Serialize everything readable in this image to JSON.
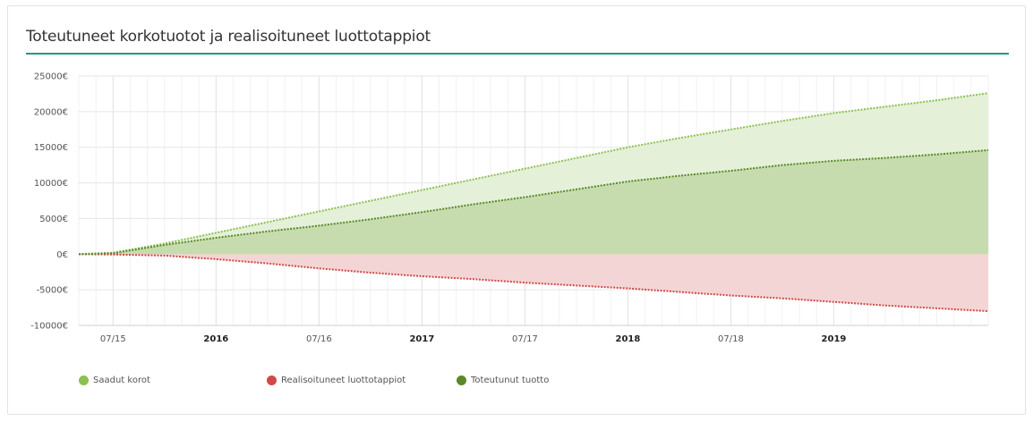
{
  "title": "Toteutuneet korkotuotot ja realisoituneet luottotappiot",
  "chart_data": {
    "type": "area",
    "y_ticks": [
      {
        "value": 25000,
        "label": "25000€"
      },
      {
        "value": 20000,
        "label": "20000€"
      },
      {
        "value": 15000,
        "label": "15000€"
      },
      {
        "value": 10000,
        "label": "10000€"
      },
      {
        "value": 5000,
        "label": "5000€"
      },
      {
        "value": 0,
        "label": "0€"
      },
      {
        "value": -5000,
        "label": "-5000€"
      },
      {
        "value": -10000,
        "label": "-10000€"
      }
    ],
    "ylim": [
      -10000,
      25000
    ],
    "xlim": [
      "2015-05",
      "2019-10"
    ],
    "x_ticks": [
      {
        "date": "2015-07",
        "label": "07/15",
        "major": false
      },
      {
        "date": "2016-01",
        "label": "2016",
        "major": true
      },
      {
        "date": "2016-07",
        "label": "07/16",
        "major": false
      },
      {
        "date": "2017-01",
        "label": "2017",
        "major": true
      },
      {
        "date": "2017-07",
        "label": "07/17",
        "major": false
      },
      {
        "date": "2018-01",
        "label": "2018",
        "major": true
      },
      {
        "date": "2018-07",
        "label": "07/18",
        "major": false
      },
      {
        "date": "2019-01",
        "label": "2019",
        "major": true
      }
    ],
    "x": [
      "2015-05",
      "2015-07",
      "2015-10",
      "2016-01",
      "2016-04",
      "2016-07",
      "2016-10",
      "2017-01",
      "2017-04",
      "2017-07",
      "2017-10",
      "2018-01",
      "2018-04",
      "2018-07",
      "2018-10",
      "2019-01",
      "2019-04",
      "2019-07",
      "2019-10"
    ],
    "series": [
      {
        "name": "Saadut korot",
        "color": "#8cc152",
        "values": [
          0,
          200,
          1500,
          3000,
          4500,
          6000,
          7500,
          9000,
          10500,
          12000,
          13500,
          15000,
          16300,
          17500,
          18700,
          19800,
          20700,
          21600,
          22600
        ]
      },
      {
        "name": "Realisoituneet luottotappiot",
        "color": "#d04a4a",
        "values": [
          0,
          -50,
          -200,
          -700,
          -1300,
          -2000,
          -2600,
          -3100,
          -3500,
          -4000,
          -4400,
          -4800,
          -5300,
          -5800,
          -6200,
          -6700,
          -7200,
          -7600,
          -8000
        ]
      },
      {
        "name": "Toteutunut tuotto",
        "color": "#5a8a28",
        "values": [
          0,
          150,
          1300,
          2300,
          3200,
          4000,
          4900,
          5900,
          7000,
          8000,
          9100,
          10200,
          11000,
          11700,
          12500,
          13100,
          13500,
          14000,
          14600
        ]
      }
    ],
    "grid": true,
    "legend_position": "bottom-left"
  },
  "legend": [
    {
      "label": "Saadut korot",
      "color": "#8cc152"
    },
    {
      "label": "Realisoituneet luottotappiot",
      "color": "#d04a4a"
    },
    {
      "label": "Toteutunut tuotto",
      "color": "#5a8a28"
    }
  ]
}
